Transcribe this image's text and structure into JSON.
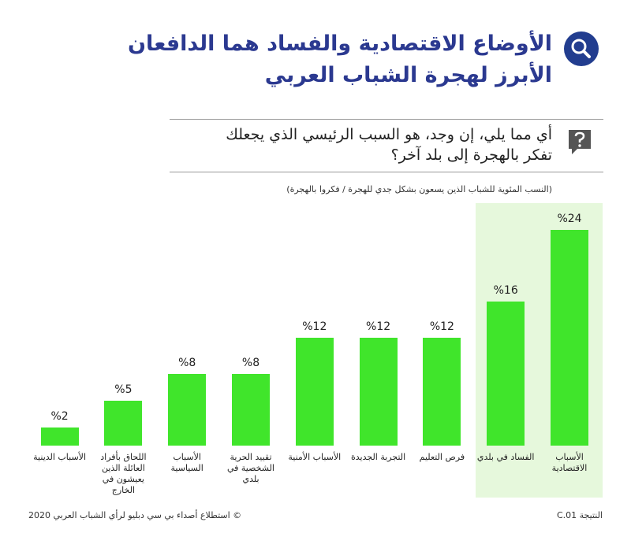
{
  "header": {
    "title": [
      "الأوضاع الاقتصادية والفساد هما الدافعان",
      "الأبرز لهجرة الشباب العربي"
    ]
  },
  "question": [
    "أي مما يلي، إن وجد، هو السبب الرئيسي الذي يجعلك",
    "تفكر بالهجرة إلى بلد آخر؟"
  ],
  "chart_data": {
    "type": "bar",
    "subtitle": "(النسب المئوية للشباب الذين يسعون بشكل جدي للهجرة / فكروا بالهجرة)",
    "categories": [
      "الأسباب الاقتصادية",
      "الفساد في بلدي",
      "فرص التعليم",
      "التجربة الجديدة",
      "الأسباب الأمنية",
      "تقييد الحرية الشخصية في بلدي",
      "الأسباب السياسية",
      "اللحاق بأفراد العائلة الذين يعيشون في الخارج",
      "الأسباب الدينية"
    ],
    "values": [
      24,
      16,
      12,
      12,
      12,
      8,
      8,
      5,
      2
    ],
    "value_labels": [
      "%24",
      "%16",
      "%12",
      "%12",
      "%12",
      "%8",
      "%8",
      "%5",
      "%2"
    ],
    "color": "#40e52b"
  },
  "footer": {
    "source": "© استطلاع أصداء بي سي دبليو لرأي الشباب العربي 2020",
    "id": "النتيجة C.01"
  }
}
